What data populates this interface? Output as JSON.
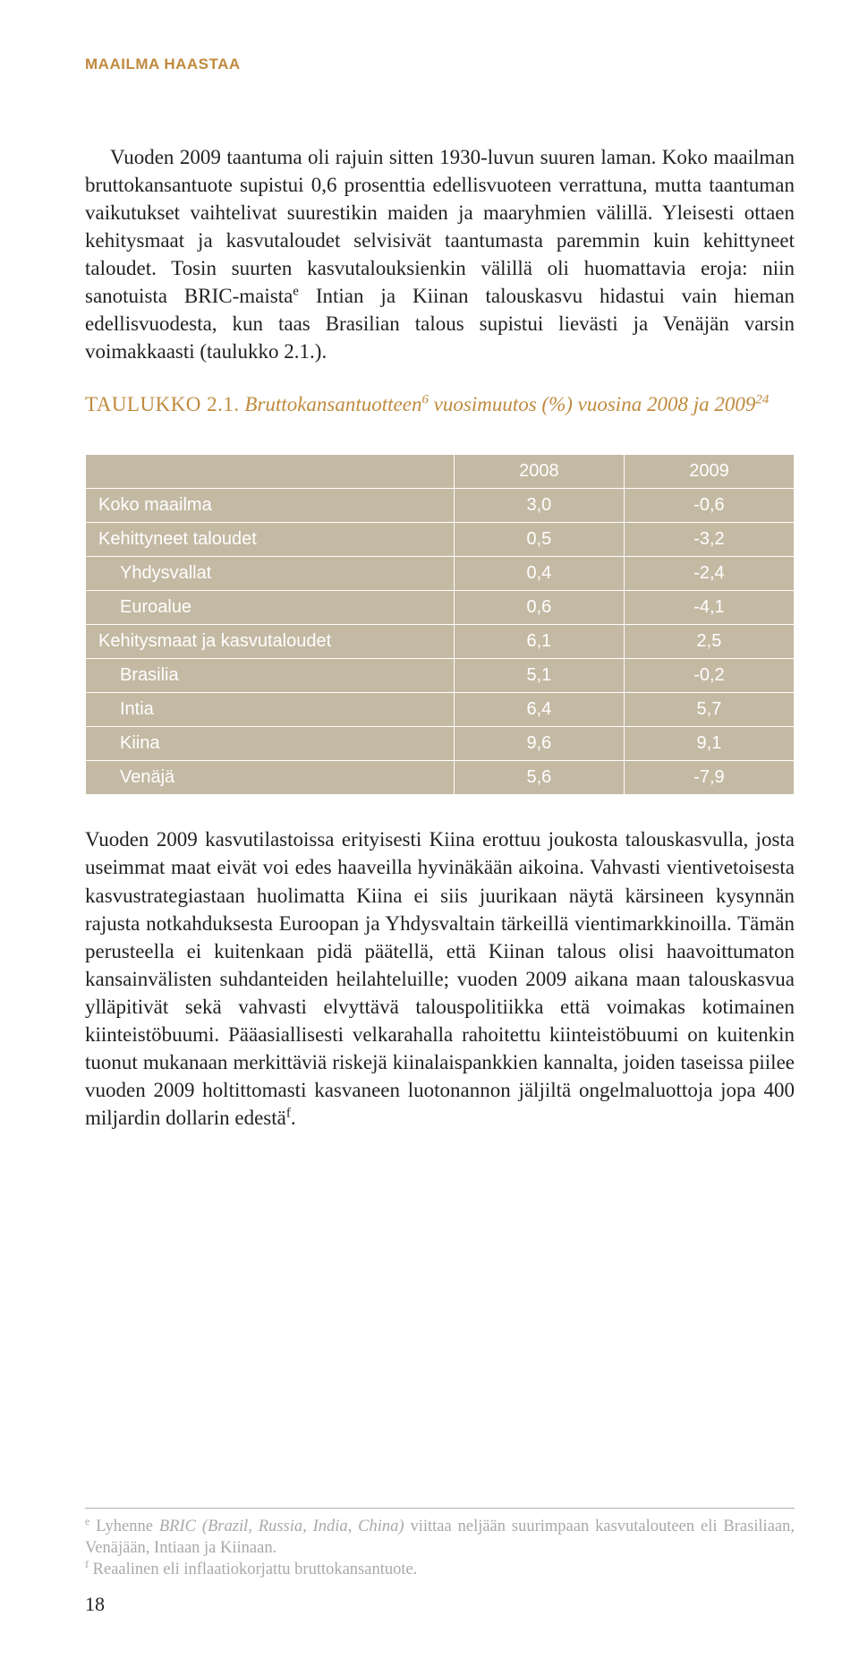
{
  "header": "MAAILMA HAASTAA",
  "para1_a": "Vuoden 2009 taantuma oli rajuin sitten 1930-luvun suuren laman. Koko maailman bruttokansantuote supistui 0,6 prosenttia edellisvuoteen verrattuna, mutta taantuman vaikutukset vaihtelivat suurestikin maiden ja maaryhmien välillä. Yleisesti ottaen kehitysmaat ja kasvutaloudet selvisivät taantumasta paremmin kuin kehittyneet taloudet. Tosin suurten kasvutalouksienkin välillä oli huomattavia eroja: niin sanotuista BRIC-maista",
  "para1_sup": "e",
  "para1_b": " Intian ja Kiinan talouskasvu hidastui vain hieman edellisvuodesta, kun taas Brasilian talous supistui lievästi ja Venäjän varsin voimakkaasti (taulukko 2.1.).",
  "caption_lead": "TAULUKKO 2.1.",
  "caption_rest_a": " Bruttokansantuotteen",
  "caption_sup1": "6",
  "caption_rest_b": " vuosimuutos (%) vuosina 2008 ja 2009",
  "caption_sup2": "24",
  "table": {
    "columns": [
      "",
      "2008",
      "2009"
    ],
    "rows": [
      {
        "label": "Koko maailma",
        "indent": 0,
        "v1": "3,0",
        "v2": "-0,6"
      },
      {
        "label": "Kehittyneet taloudet",
        "indent": 0,
        "v1": "0,5",
        "v2": "-3,2"
      },
      {
        "label": "Yhdysvallat",
        "indent": 1,
        "v1": "0,4",
        "v2": "-2,4"
      },
      {
        "label": "Euroalue",
        "indent": 1,
        "v1": "0,6",
        "v2": "-4,1"
      },
      {
        "label": "Kehitysmaat ja kasvutaloudet",
        "indent": 0,
        "v1": "6,1",
        "v2": "2,5"
      },
      {
        "label": "Brasilia",
        "indent": 1,
        "v1": "5,1",
        "v2": "-0,2"
      },
      {
        "label": "Intia",
        "indent": 1,
        "v1": "6,4",
        "v2": "5,7"
      },
      {
        "label": "Kiina",
        "indent": 1,
        "v1": "9,6",
        "v2": "9,1"
      },
      {
        "label": "Venäjä",
        "indent": 1,
        "v1": "5,6",
        "v2": "-7,9"
      }
    ],
    "header_bg": "#c4b9a3",
    "cell_bg": "#c4b9a3",
    "text_color": "#ffffff",
    "border_color": "#ffffff",
    "font_size": 20
  },
  "para2_a": "Vuoden 2009 kasvutilastoissa erityisesti Kiina erottuu joukosta talouskasvulla, josta useimmat maat eivät voi edes haaveilla hyvinäkään aikoina. Vahvasti vientivetoisesta kasvustrategiastaan huolimatta Kiina ei siis juurikaan näytä kärsineen kysynnän rajusta notkahduksesta Euroopan ja Yhdysvaltain tärkeillä vientimarkkinoilla. Tämän perusteella ei kuitenkaan pidä päätellä, että Kiinan talous olisi haavoittumaton kansainvälisten suhdanteiden heilahteluille; vuoden 2009 aikana maan talouskasvua ylläpitivät sekä vahvasti elvyttävä talouspolitiikka että voimakas kotimainen kiinteistöbuumi. Pääasiallisesti velkarahalla rahoitettu kiinteistöbuumi on kuitenkin tuonut mukanaan merkittäviä riskejä kiinalaispankkien kannalta, joiden taseissa piilee vuoden 2009 holtittomasti kasvaneen luotonannon jäljiltä ongelmaluottoja jopa 400 miljardin dollarin edestä",
  "para2_sup": "f",
  "para2_b": ".",
  "footnote_e_sup": "e",
  "footnote_e_a": " Lyhenne ",
  "footnote_e_ital": "BRIC (Brazil, Russia, India, China)",
  "footnote_e_b": " viittaa neljään suurimpaan kasvutalouteen eli Brasiliaan, Venäjään, Intiaan ja Kiinaan.",
  "footnote_f_sup": "f",
  "footnote_f": " Reaalinen eli inflaatiokorjattu bruttokansantuote.",
  "page_number": "18"
}
